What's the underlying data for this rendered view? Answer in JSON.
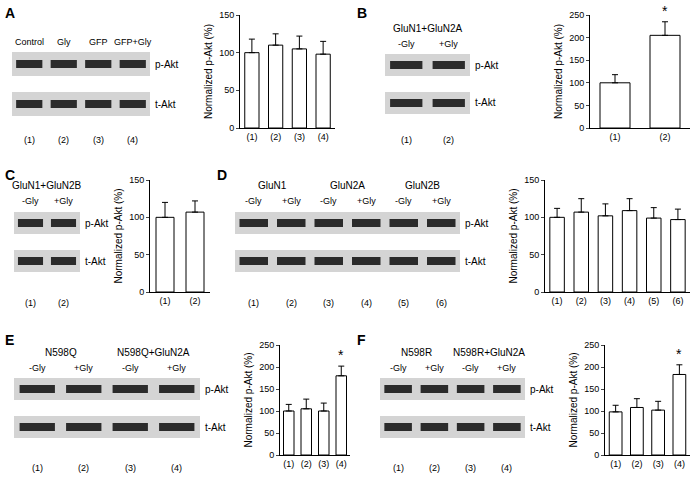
{
  "chart_data": [
    {
      "type": "bar",
      "title": "A",
      "categories": [
        "(1)",
        "(2)",
        "(3)",
        "(4)"
      ],
      "values": [
        100,
        110,
        105,
        98
      ],
      "errors": [
        18,
        15,
        17,
        17
      ],
      "color": "#ffffff",
      "ylim": [
        0,
        150
      ],
      "yticks": [
        0,
        50,
        100,
        150
      ],
      "ylabel": "Normalized p-Akt (%)",
      "blot": {
        "groups": [],
        "lanes": [
          "Control",
          "Gly",
          "GFP",
          "GFP+Gly"
        ],
        "rows": [
          "p-Akt",
          "t-Akt"
        ]
      },
      "annotations": []
    },
    {
      "type": "bar",
      "title": "B",
      "categories": [
        "(1)",
        "(2)"
      ],
      "values": [
        100,
        205
      ],
      "errors": [
        18,
        30
      ],
      "color": "#ffffff",
      "ylim": [
        0,
        250
      ],
      "yticks": [
        0,
        50,
        100,
        150,
        200,
        250
      ],
      "ylabel": "Normalized p-Akt (%)",
      "blot": {
        "groups": [
          "GluN1+GluN2A"
        ],
        "lanes": [
          "-Gly",
          "+Gly"
        ],
        "rows": [
          "p-Akt",
          "t-Akt"
        ]
      },
      "annotations": [
        {
          "text": "*",
          "category": "(2)"
        }
      ]
    },
    {
      "type": "bar",
      "title": "C",
      "categories": [
        "(1)",
        "(2)"
      ],
      "values": [
        100,
        107
      ],
      "errors": [
        20,
        15
      ],
      "color": "#ffffff",
      "ylim": [
        0,
        150
      ],
      "yticks": [
        0,
        50,
        100,
        150
      ],
      "ylabel": "Normalized p-Akt (%)",
      "blot": {
        "groups": [
          "GluN1+GluN2B"
        ],
        "lanes": [
          "-Gly",
          "+Gly"
        ],
        "rows": [
          "p-Akt",
          "t-Akt"
        ]
      },
      "annotations": []
    },
    {
      "type": "bar",
      "title": "D",
      "categories": [
        "(1)",
        "(2)",
        "(3)",
        "(4)",
        "(5)",
        "(6)"
      ],
      "values": [
        100,
        107,
        102,
        109,
        99,
        97
      ],
      "errors": [
        12,
        18,
        16,
        16,
        14,
        14
      ],
      "color": "#ffffff",
      "ylim": [
        0,
        150
      ],
      "yticks": [
        0,
        50,
        100,
        150
      ],
      "ylabel": "Normalized p-Akt (%)",
      "blot": {
        "groups": [
          "GluN1",
          "GluN2A",
          "GluN2B"
        ],
        "lanes": [
          "-Gly",
          "+Gly",
          "-Gly",
          "+Gly",
          "-Gly",
          "+Gly"
        ],
        "rows": [
          "p-Akt",
          "t-Akt"
        ]
      },
      "annotations": []
    },
    {
      "type": "bar",
      "title": "E",
      "categories": [
        "(1)",
        "(2)",
        "(3)",
        "(4)"
      ],
      "values": [
        100,
        105,
        100,
        180
      ],
      "errors": [
        15,
        22,
        18,
        22
      ],
      "color": "#ffffff",
      "ylim": [
        0,
        250
      ],
      "yticks": [
        0,
        50,
        100,
        150,
        200,
        250
      ],
      "ylabel": "Normalized p-Akt (%)",
      "blot": {
        "groups": [
          "N598Q",
          "N598Q+GluN2A"
        ],
        "lanes": [
          "-Gly",
          "+Gly",
          "-Gly",
          "+Gly"
        ],
        "rows": [
          "p-Akt",
          "t-Akt"
        ]
      },
      "annotations": [
        {
          "text": "*",
          "category": "(4)"
        }
      ]
    },
    {
      "type": "bar",
      "title": "F",
      "categories": [
        "(1)",
        "(2)",
        "(3)",
        "(4)"
      ],
      "values": [
        98,
        108,
        102,
        183
      ],
      "errors": [
        15,
        20,
        20,
        22
      ],
      "color": "#ffffff",
      "ylim": [
        0,
        250
      ],
      "yticks": [
        0,
        50,
        100,
        150,
        200,
        250
      ],
      "ylabel": "Normalized p-Akt (%)",
      "blot": {
        "groups": [
          "N598R",
          "N598R+GluN2A"
        ],
        "lanes": [
          "-Gly",
          "+Gly",
          "-Gly",
          "+Gly"
        ],
        "rows": [
          "p-Akt",
          "t-Akt"
        ]
      },
      "annotations": [
        {
          "text": "*",
          "category": "(4)"
        }
      ]
    }
  ]
}
